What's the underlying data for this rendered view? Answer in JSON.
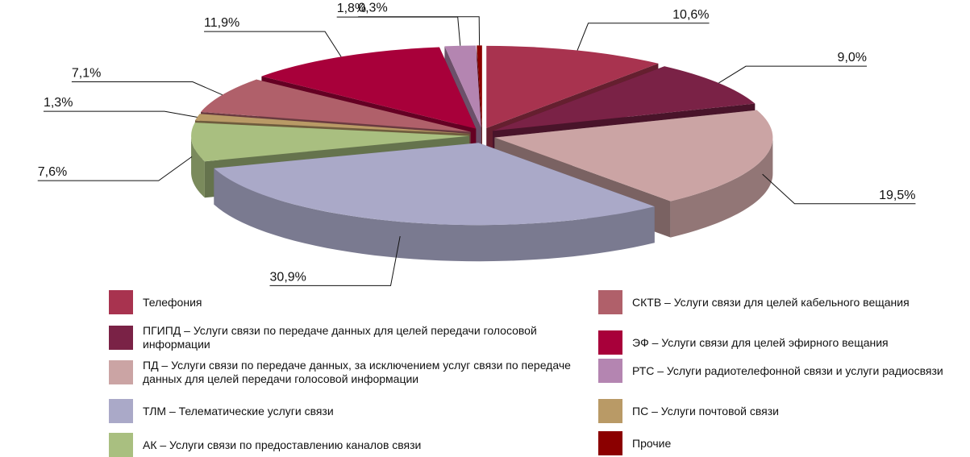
{
  "chart_data": {
    "type": "pie",
    "categories": [
      "Телефония",
      "ПГИПД – Услуги связи по передаче данных для целей передачи голосовой информации",
      "ПД – Услуги связи по передаче данных, за исключением услуг связи по передаче данных для целей передачи голосовой информации",
      "ТЛМ – Телематические услуги связи",
      "АК – Услуги связи по предоставлению каналов связи",
      "ПС – Услуги почтовой связи",
      "СКТВ – Услуги связи для целей кабельного вещания",
      "ЭФ – Услуги связи для целей эфирного вещания",
      "РТС – Услуги радиотелефонной связи и услуги радиосвязи",
      "Прочие"
    ],
    "values": [
      10.6,
      9.0,
      19.5,
      30.9,
      7.6,
      1.3,
      7.1,
      11.9,
      1.8,
      0.3
    ],
    "value_labels": [
      "10,6%",
      "9,0%",
      "19,5%",
      "30,9%",
      "7,6%",
      "1,3%",
      "7,1%",
      "11,9%",
      "1,8%",
      "0,3%"
    ],
    "colors": [
      "#a8334f",
      "#7a2246",
      "#cba4a4",
      "#aaa9c8",
      "#a9bf80",
      "#b99a66",
      "#b0606a",
      "#a8003a",
      "#b485b1",
      "#8b0000"
    ]
  }
}
